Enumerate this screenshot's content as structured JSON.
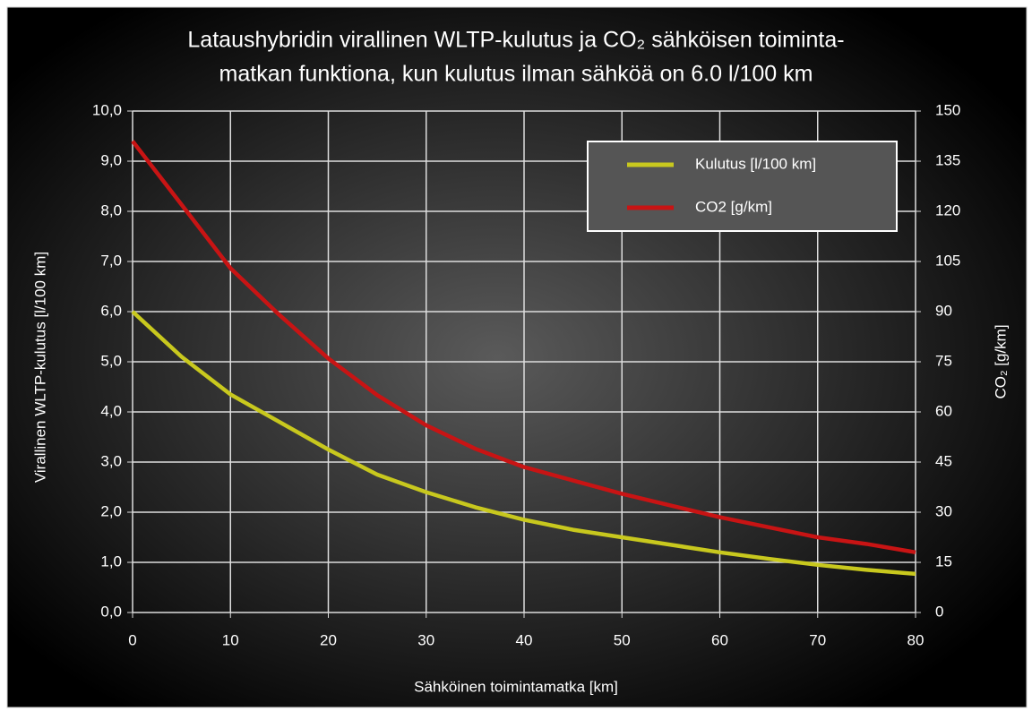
{
  "chart_data": {
    "type": "line",
    "title": [
      "Lataushybridin virallinen WLTP-kulutus ja CO₂ sähköisen toiminta-",
      "matkan funktiona, kun kulutus ilman sähköä on 6.0 l/100 km"
    ],
    "x_label": "Sähköinen toimintamatka [km]",
    "y_label": "Virallinen WLTP-kulutus [l/100 km]",
    "y2_label": "CO₂ [g/km]",
    "x": [
      0,
      5,
      10,
      15,
      20,
      25,
      30,
      35,
      40,
      45,
      50,
      55,
      60,
      65,
      70,
      75,
      80
    ],
    "series": [
      {
        "name": "Kulutus [l/100 km]",
        "color": "#c8c81e",
        "values": [
          6.0,
          5.1,
          4.35,
          3.8,
          3.25,
          2.75,
          2.4,
          2.1,
          1.85,
          1.65,
          1.5,
          1.35,
          1.2,
          1.07,
          0.95,
          0.85,
          0.77
        ]
      },
      {
        "name": "CO2 [g/km]",
        "color": "#c81414",
        "axis": "y2",
        "values": [
          141,
          122,
          103,
          89,
          76,
          65,
          56,
          49,
          43.5,
          39.5,
          35.5,
          32,
          28.5,
          25.5,
          22.5,
          20.5,
          18
        ]
      }
    ],
    "xlim": [
      0,
      80
    ],
    "xticks": [
      0,
      10,
      20,
      30,
      40,
      50,
      60,
      70,
      80
    ],
    "ylim": [
      0,
      10
    ],
    "yticks": [
      {
        "value": 0,
        "label": "0,0"
      },
      {
        "value": 1,
        "label": "1,0"
      },
      {
        "value": 2,
        "label": "2,0"
      },
      {
        "value": 3,
        "label": "3,0"
      },
      {
        "value": 4,
        "label": "4,0"
      },
      {
        "value": 5,
        "label": "5,0"
      },
      {
        "value": 6,
        "label": "6,0"
      },
      {
        "value": 7,
        "label": "7,0"
      },
      {
        "value": 8,
        "label": "8,0"
      },
      {
        "value": 9,
        "label": "9,0"
      },
      {
        "value": 10,
        "label": "10,0"
      }
    ],
    "y2lim": [
      0,
      150
    ],
    "y2ticks": [
      0,
      15,
      30,
      45,
      60,
      75,
      90,
      105,
      120,
      135,
      150
    ],
    "grid": true,
    "legend": "upper right"
  }
}
